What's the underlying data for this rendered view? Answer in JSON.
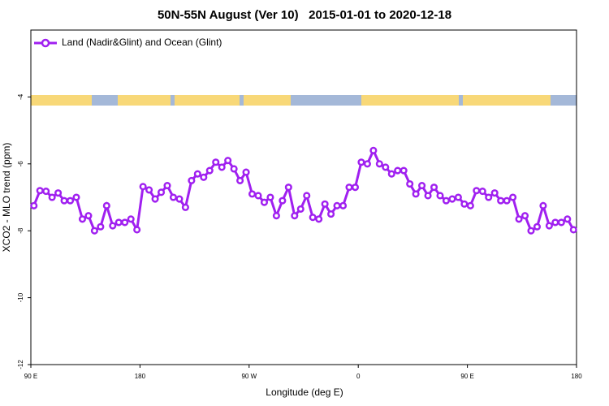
{
  "chart_data": {
    "type": "line",
    "title": "50N-55N August (Ver 10)   2015-01-01 to 2020-12-18",
    "xlabel": "Longitude (deg E)",
    "ylabel": "XCO2 - MLO trend (ppm)",
    "xlim": [
      90,
      540
    ],
    "ylim": [
      -12,
      -2
    ],
    "xticks": [
      {
        "value": 90,
        "label": "90 E"
      },
      180,
      {
        "value": 270,
        "label": "90 W"
      },
      {
        "value": 360,
        "label": "0"
      },
      {
        "value": 450,
        "label": "90 E"
      },
      {
        "value": 540,
        "label": "180"
      }
    ],
    "yticks": [
      -12,
      -10,
      -8,
      -6,
      -4
    ],
    "legend": "upper left",
    "x": [
      92.5,
      97.5,
      102.5,
      107.5,
      112.5,
      117.5,
      122.5,
      127.5,
      132.5,
      137.5,
      142.5,
      147.5,
      152.5,
      157.5,
      162.5,
      167.5,
      172.5,
      177.5,
      182.5,
      187.5,
      192.5,
      197.5,
      202.5,
      207.5,
      212.5,
      217.5,
      222.5,
      227.5,
      232.5,
      237.5,
      242.5,
      247.5,
      252.5,
      257.5,
      262.5,
      267.5,
      272.5,
      277.5,
      282.5,
      287.5,
      292.5,
      297.5,
      302.5,
      307.5,
      312.5,
      317.5,
      322.5,
      327.5,
      332.5,
      337.5,
      342.5,
      347.5,
      352.5,
      357.5,
      362.5,
      367.5,
      372.5,
      377.5,
      382.5,
      387.5,
      392.5,
      397.5,
      402.5,
      407.5,
      412.5,
      417.5,
      422.5,
      427.5,
      432.5,
      437.5,
      442.5,
      447.5,
      452.5,
      457.5,
      462.5,
      467.5,
      472.5,
      477.5,
      482.5,
      487.5,
      492.5,
      497.5,
      502.5,
      507.5,
      512.5,
      517.5,
      522.5,
      527.5,
      532.5,
      537.5
    ],
    "series": [
      {
        "name": "Land (Nadir&Glint) and Ocean (Glint)",
        "color": "#a020f0",
        "values": [
          -7.25,
          -6.8,
          -6.82,
          -7.0,
          -6.87,
          -7.1,
          -7.1,
          -7.0,
          -7.65,
          -7.55,
          -8.0,
          -7.88,
          -7.25,
          -7.85,
          -7.75,
          -7.75,
          -7.65,
          -7.97,
          -6.68,
          -6.78,
          -7.05,
          -6.85,
          -6.65,
          -7.0,
          -7.05,
          -7.3,
          -6.5,
          -6.3,
          -6.4,
          -6.2,
          -5.95,
          -6.1,
          -5.9,
          -6.15,
          -6.5,
          -6.25,
          -6.9,
          -6.95,
          -7.15,
          -7.0,
          -7.55,
          -7.1,
          -6.7,
          -7.55,
          -7.35,
          -6.95,
          -7.6,
          -7.65,
          -7.2,
          -7.5,
          -7.25,
          -7.25,
          -6.7,
          -6.7,
          -5.95,
          -6.0,
          -5.6,
          -6.0,
          -6.1,
          -6.3,
          -6.2,
          -6.2,
          -6.6,
          -6.9,
          -6.65,
          -6.95,
          -6.7,
          -6.95,
          -7.1,
          -7.05,
          -7.0,
          -7.2,
          -7.25,
          -6.8,
          -6.82,
          -7.0,
          -6.87,
          -7.1,
          -7.1,
          -7.0,
          -7.65,
          -7.55,
          -8.0,
          -7.88,
          -7.25,
          -7.85,
          -7.75,
          -7.75,
          -7.65,
          -7.97
        ]
      }
    ]
  }
}
